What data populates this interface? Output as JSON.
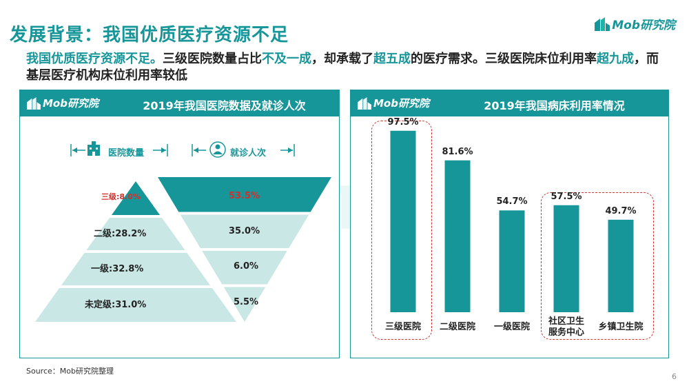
{
  "page": {
    "title": "发展背景：我国优质医疗资源不足",
    "logo_text": "Mob研究院",
    "subtitle_parts": [
      {
        "text": "我国优质医疗资源不足。",
        "hl": true
      },
      {
        "text": "三级医院数量占比",
        "hl": false
      },
      {
        "text": "不及一成",
        "hl": true
      },
      {
        "text": "，却承载了",
        "hl": false
      },
      {
        "text": "超五成",
        "hl": true
      },
      {
        "text": "的医疗需求。三级医院床位利用率",
        "hl": false
      },
      {
        "text": "超九成",
        "hl": true
      },
      {
        "text": "，而基层医疗机构床位利用率较低",
        "hl": false
      }
    ],
    "source": "Source：Mob研究院整理",
    "page_number": "6",
    "watermark": "MobTech 袤博"
  },
  "colors": {
    "teal": "#17969a",
    "light_teal": "#c9e7e5",
    "red": "#d0312d"
  },
  "chart_data": [
    {
      "type": "pyramid",
      "title": "2019年我国医院数据及就诊人次",
      "logo_text": "Mob研究院",
      "legend": [
        {
          "name": "医院数量",
          "icon": "hospital-icon"
        },
        {
          "name": "就诊人次",
          "icon": "person-icon"
        }
      ],
      "categories": [
        "三级",
        "二级",
        "一级",
        "未定级"
      ],
      "series": [
        {
          "name": "医院数量",
          "values": [
            8.0,
            28.2,
            32.8,
            31.0
          ],
          "labels": [
            "三级:8.0%",
            "二级:28.2%",
            "一级:32.8%",
            "未定级:31.0%"
          ]
        },
        {
          "name": "就诊人次",
          "values": [
            53.5,
            35.0,
            6.0,
            5.5
          ],
          "labels": [
            "53.5%",
            "35.0%",
            "6.0%",
            "5.5%"
          ]
        }
      ],
      "highlight_index": 0
    },
    {
      "type": "bar",
      "title": "2019年我国病床利用率情况",
      "logo_text": "Mob研究院",
      "categories": [
        "三级医院",
        "二级医院",
        "一级医院",
        "社区卫生服务中心",
        "乡镇卫生院"
      ],
      "category_lines": [
        [
          "三级医院"
        ],
        [
          "二级医院"
        ],
        [
          "一级医院"
        ],
        [
          "社区卫生",
          "服务中心"
        ],
        [
          "乡镇卫生院"
        ]
      ],
      "values": [
        97.5,
        81.6,
        54.7,
        57.5,
        49.7
      ],
      "labels": [
        "97.5%",
        "81.6%",
        "54.7%",
        "57.5%",
        "49.7%"
      ],
      "ylim": [
        0,
        100
      ],
      "highlight_index": 0,
      "grouped_boxes": [
        [
          0
        ],
        [
          3,
          4
        ]
      ]
    }
  ]
}
